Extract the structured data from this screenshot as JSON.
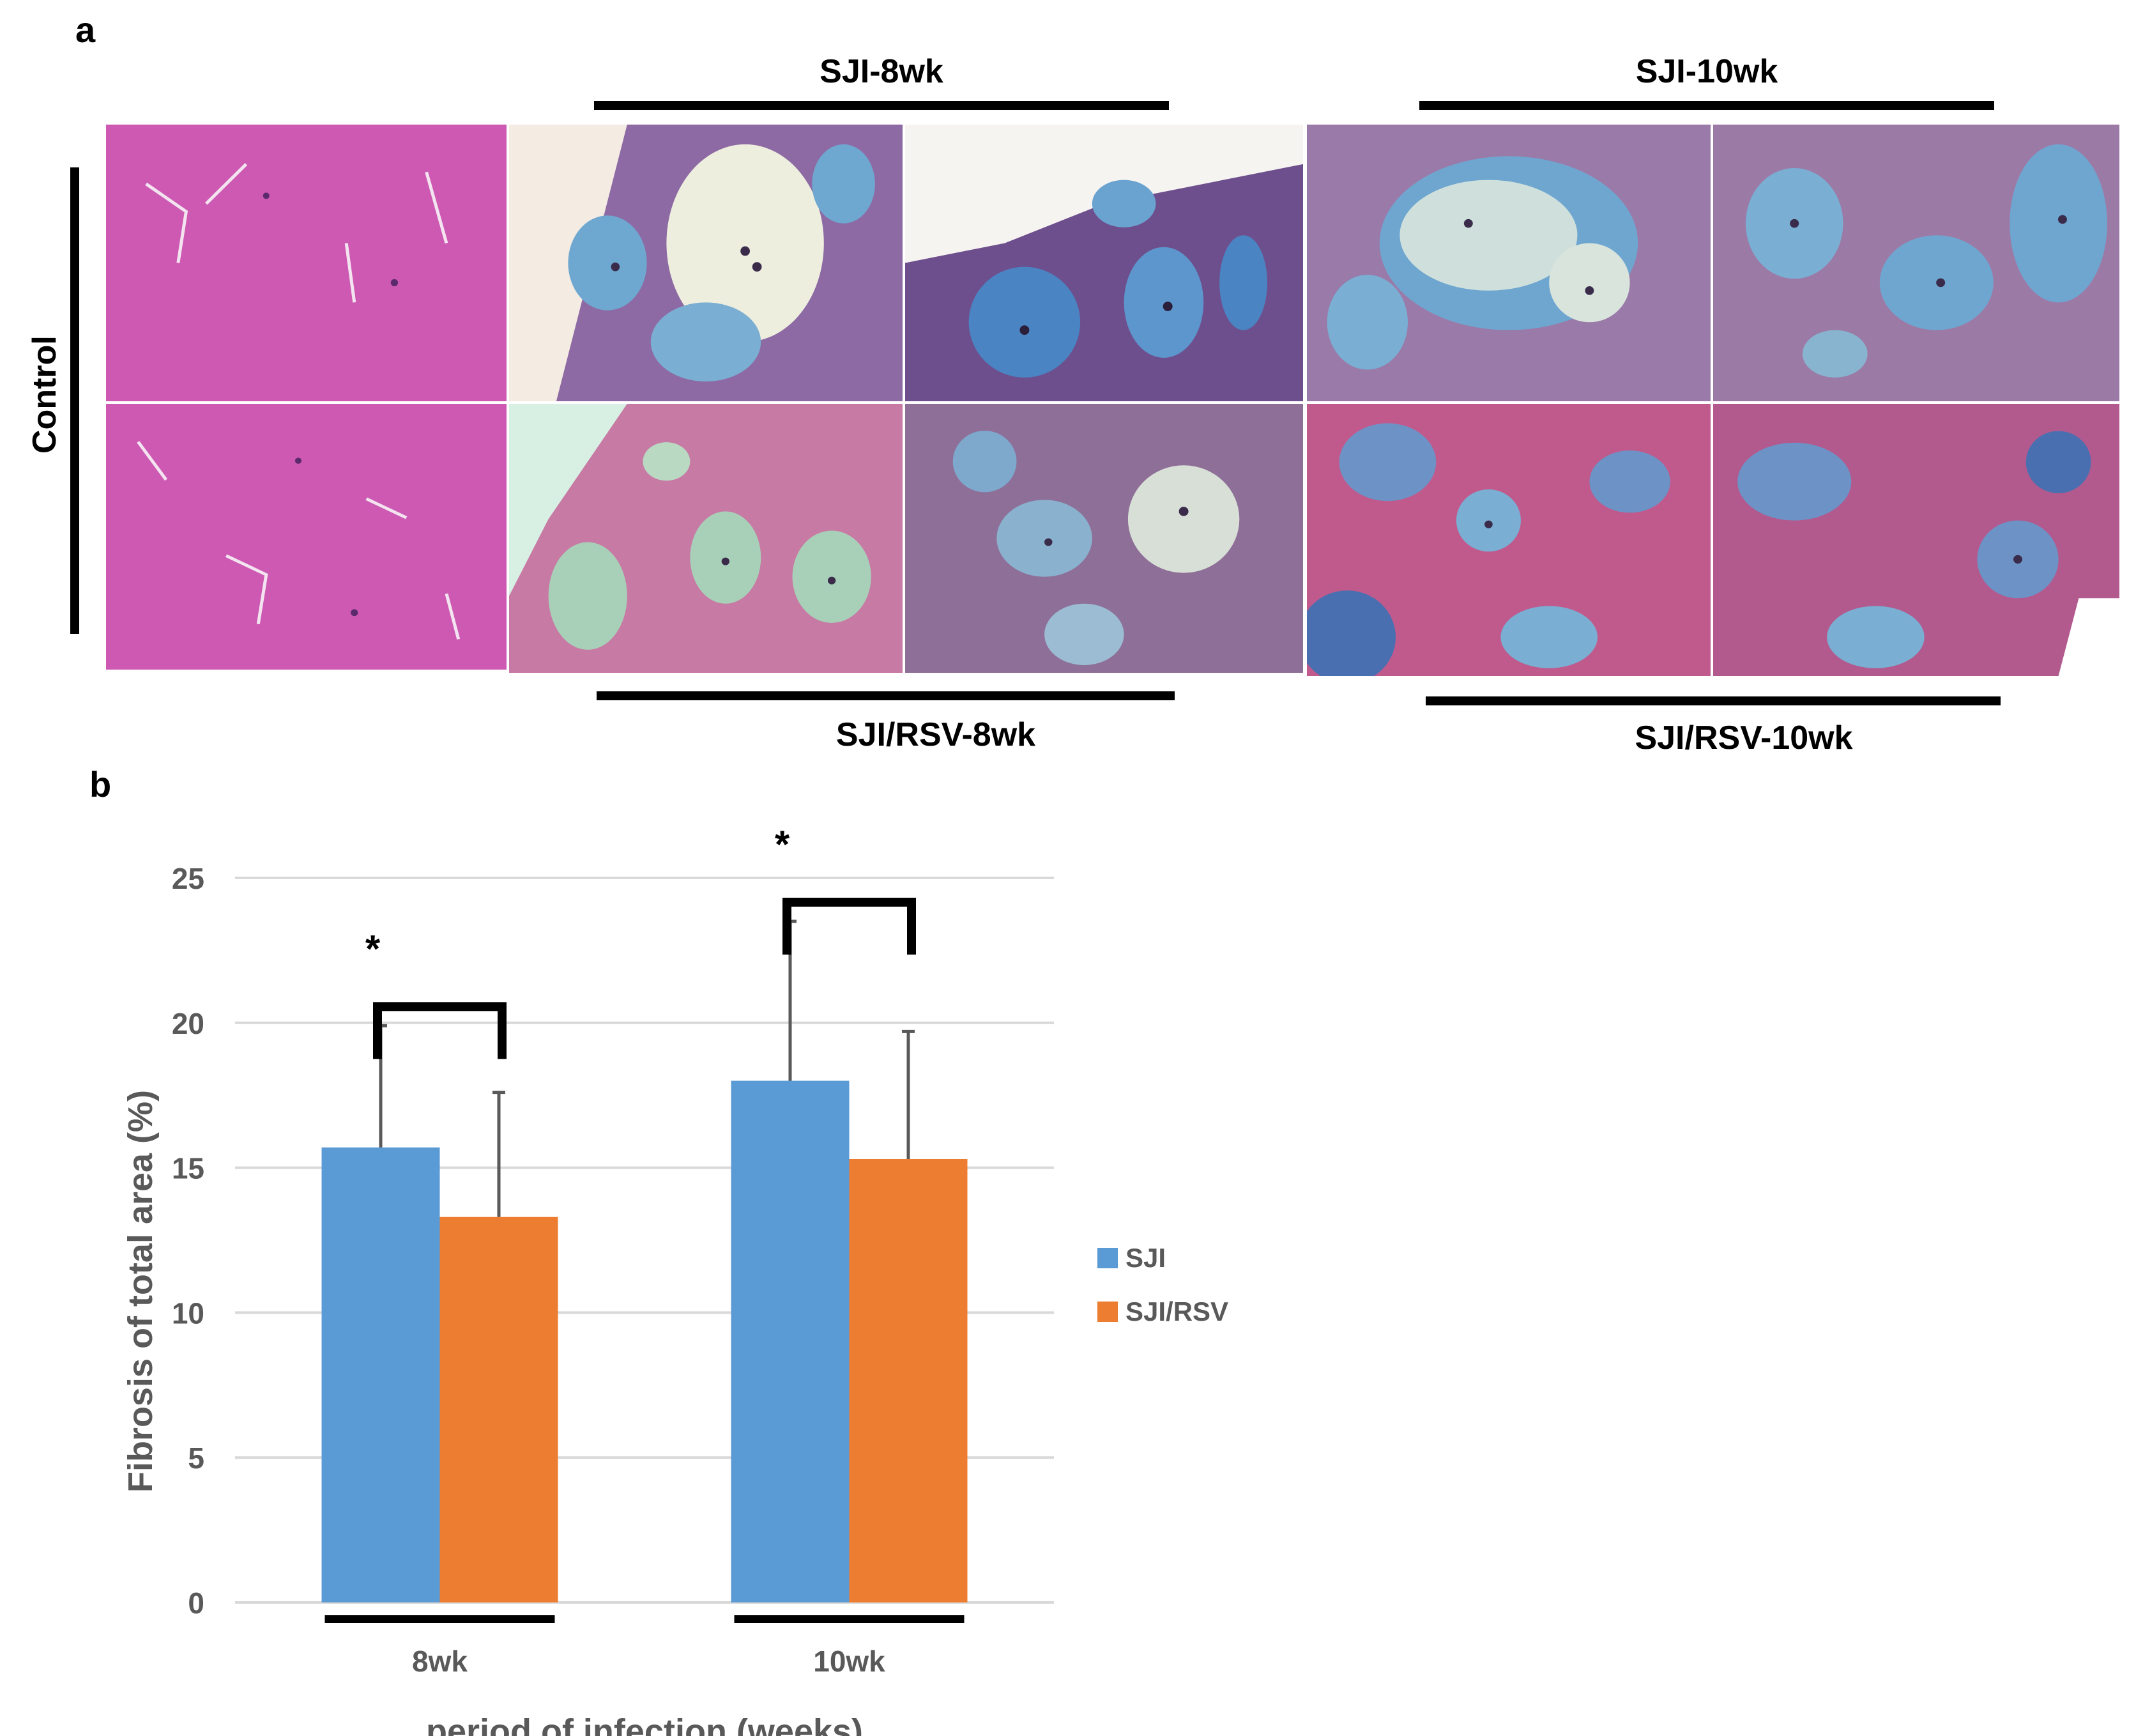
{
  "panel_a": {
    "letter": "a",
    "row_label": "Control",
    "top_groups": [
      "SJI-8wk",
      "SJI-10wk"
    ],
    "bottom_groups": [
      "SJI/RSV-8wk",
      "SJI/RSV-10wk"
    ]
  },
  "panel_b": {
    "letter": "b"
  },
  "chart_data": {
    "type": "bar",
    "categories": [
      "8wk",
      "10wk"
    ],
    "series": [
      {
        "name": "SJI",
        "values": [
          15.7,
          18.0
        ],
        "errors": [
          4.2,
          5.5
        ],
        "color": "#5b9bd5"
      },
      {
        "name": "SJI/RSV",
        "values": [
          13.3,
          15.3
        ],
        "errors": [
          4.3,
          4.4
        ],
        "color": "#ed7d31"
      }
    ],
    "xlabel": "period of infection (weeks)",
    "ylabel": "Fibrosis of total area (%)",
    "ylim": [
      0,
      25
    ],
    "yticks": [
      0,
      5,
      10,
      15,
      20,
      25
    ],
    "grid": true,
    "legend_position": "right",
    "significance": [
      {
        "category": "8wk",
        "marker": "*"
      },
      {
        "category": "10wk",
        "marker": "*"
      }
    ]
  }
}
